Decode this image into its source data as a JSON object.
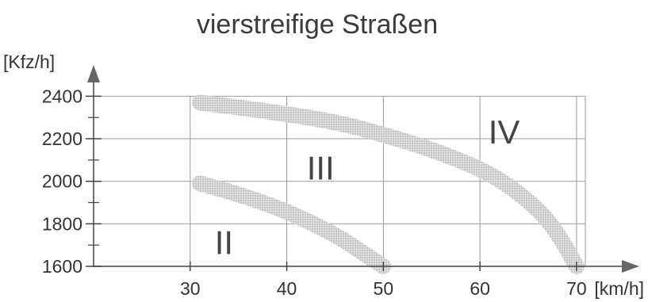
{
  "chart_data": {
    "type": "line",
    "title": "vierstreifige Straßen",
    "xlabel": "[km/h]",
    "ylabel": "[Kfz/h]",
    "xlim": [
      20,
      76
    ],
    "ylim": [
      1600,
      2450
    ],
    "x_ticks": [
      30,
      40,
      50,
      60,
      70
    ],
    "x_tick_labels": [
      "30",
      "40",
      "50",
      "60",
      "70"
    ],
    "y_ticks": [
      1600,
      1800,
      2000,
      2200,
      2400
    ],
    "y_tick_labels": [
      "1600",
      "1800",
      "2000",
      "2200",
      "2400"
    ],
    "y_minor_ticks": [
      1700,
      1900,
      2100,
      2300
    ],
    "grid": true,
    "series": [
      {
        "x": [
          31,
          35,
          40,
          45,
          48,
          50
        ],
        "y": [
          1990,
          1940,
          1860,
          1750,
          1660,
          1600
        ]
      },
      {
        "x": [
          31,
          38,
          45,
          50,
          55,
          60,
          63,
          66,
          68,
          70
        ],
        "y": [
          2370,
          2330,
          2280,
          2220,
          2150,
          2060,
          1980,
          1870,
          1760,
          1600
        ]
      }
    ],
    "annotations": [
      {
        "text": "II",
        "x": 33.5,
        "y": 1710
      },
      {
        "text": "III",
        "x": 43.5,
        "y": 2060
      },
      {
        "text": "IV",
        "x": 62.5,
        "y": 2230
      }
    ],
    "band_color": "#a8a8a8",
    "grid_color": "#9a9a9a",
    "axis_color": "#444444"
  }
}
